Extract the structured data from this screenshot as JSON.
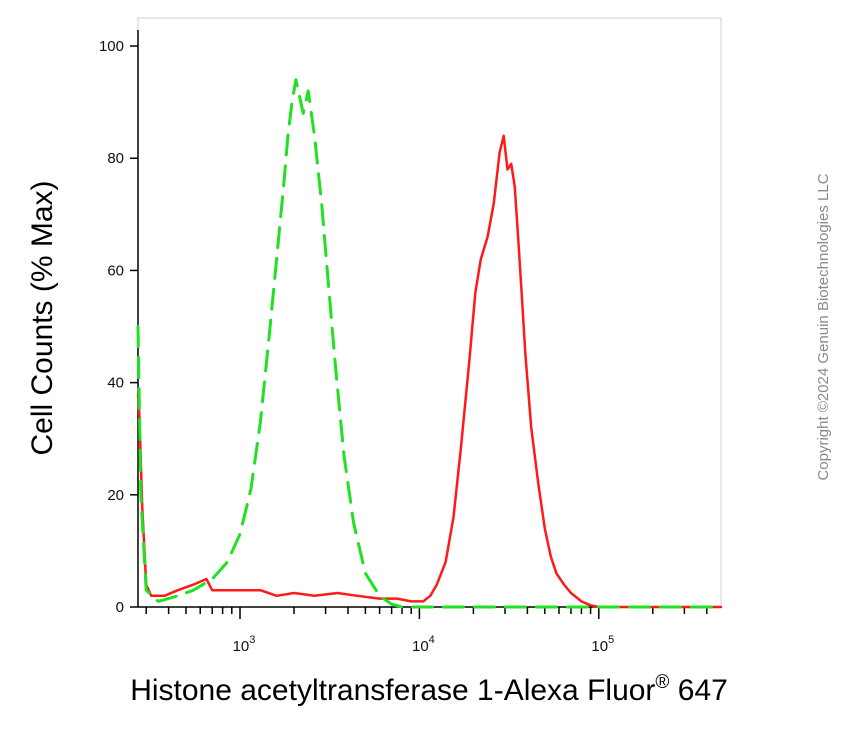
{
  "chart_data": {
    "type": "line",
    "xlabel": "Histone acetyltransferase 1-Alexa Fluor",
    "xlabel_sup": "®",
    "xlabel_tail": " 647",
    "ylabel": "Cell Counts (% Max)",
    "x_scale": "log",
    "xlim": [
      270,
      480000
    ],
    "ylim": [
      0,
      105
    ],
    "y_ticks": [
      0,
      20,
      40,
      60,
      80,
      100
    ],
    "x_major_ticks": [
      {
        "value": 1000,
        "base": "10",
        "exp": "3"
      },
      {
        "value": 10000,
        "base": "10",
        "exp": "4"
      },
      {
        "value": 100000,
        "base": "10",
        "exp": "5"
      }
    ],
    "grid": false,
    "legend": "none",
    "series": [
      {
        "color": "#ff1a1a",
        "style": "solid",
        "x": [
          270,
          275,
          285,
          300,
          320,
          340,
          380,
          450,
          550,
          650,
          700,
          800,
          1000,
          1300,
          1600,
          2000,
          2600,
          3500,
          4500,
          6000,
          7500,
          9000,
          10500,
          11500,
          12500,
          14000,
          15500,
          17000,
          19000,
          20500,
          22000,
          24000,
          26000,
          28000,
          29500,
          31000,
          32500,
          34000,
          35500,
          37000,
          39000,
          42000,
          46000,
          50000,
          54000,
          58000,
          64000,
          70000,
          80000,
          90000,
          100000,
          130000,
          200000,
          300000,
          480000
        ],
        "y": [
          38,
          34,
          18,
          4,
          2,
          2,
          2,
          3,
          4,
          5,
          3,
          3,
          3,
          3,
          2,
          2.5,
          2,
          2.5,
          2,
          1.5,
          1.5,
          1,
          1,
          2,
          4,
          8,
          16,
          28,
          44,
          56,
          62,
          66,
          72,
          81,
          84,
          78,
          79,
          75,
          66,
          57,
          45,
          32,
          22,
          14,
          9,
          6,
          4,
          2.5,
          1,
          0.3,
          0,
          0,
          0,
          0,
          0
        ]
      },
      {
        "color": "#22e022",
        "style": "dashed",
        "x": [
          270,
          280,
          300,
          350,
          450,
          550,
          700,
          850,
          1000,
          1150,
          1300,
          1450,
          1600,
          1750,
          1850,
          1950,
          2050,
          2150,
          2250,
          2400,
          2600,
          2850,
          3100,
          3400,
          3800,
          4300,
          5000,
          6000,
          7000,
          8000,
          10000,
          20000,
          50000,
          100000,
          200000,
          480000
        ],
        "y": [
          50,
          20,
          3,
          1,
          2,
          3,
          5,
          8,
          13,
          21,
          33,
          48,
          62,
          75,
          84,
          90,
          94,
          91,
          88,
          92,
          84,
          72,
          58,
          43,
          27,
          15,
          6,
          2,
          0.5,
          0,
          0,
          0,
          0,
          0,
          0,
          0
        ]
      }
    ]
  },
  "watermark": {
    "text": "Copyright ©2024 Genuin Biotechnologies LLC"
  }
}
